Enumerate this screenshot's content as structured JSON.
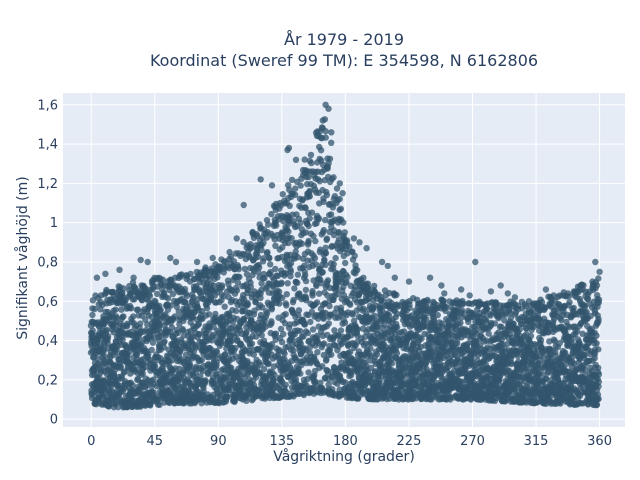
{
  "chart_data": {
    "type": "scatter",
    "title_lines": [
      "År 1979 - 2019",
      "Koordinat (Sweref 99 TM): E 354598, N 6162806"
    ],
    "xlabel": "Vågriktning (grader)",
    "ylabel": "Signifikant våghöjd (m)",
    "xlim": [
      -20,
      378
    ],
    "ylim": [
      -0.04,
      1.66
    ],
    "xticks": [
      0,
      45,
      90,
      135,
      180,
      225,
      270,
      315,
      360
    ],
    "xtick_labels": [
      "0",
      "45",
      "90",
      "135",
      "180",
      "225",
      "270",
      "315",
      "360"
    ],
    "yticks": [
      0,
      0.2,
      0.4,
      0.6,
      0.8,
      1.0,
      1.2,
      1.4,
      1.6
    ],
    "ytick_labels": [
      "0",
      "0,2",
      "0,4",
      "0,6",
      "0,8",
      "1",
      "1,2",
      "1,4",
      "1,6"
    ],
    "grid": true,
    "colors": {
      "plot_background": "#e5ecf6",
      "grid": "#ffffff",
      "marker": "#33566e"
    },
    "series": [
      {
        "marker_opacity": 0.75,
        "envelope_x": [
          0,
          15,
          30,
          45,
          60,
          75,
          90,
          105,
          120,
          135,
          150,
          160,
          165,
          170,
          180,
          195,
          225,
          270,
          315,
          360
        ],
        "envelope_ymax": [
          0.62,
          0.68,
          0.7,
          0.72,
          0.74,
          0.76,
          0.8,
          0.88,
          1.0,
          1.15,
          1.3,
          1.5,
          1.58,
          1.42,
          0.95,
          0.7,
          0.62,
          0.6,
          0.6,
          0.72
        ],
        "envelope_ymin": [
          0.08,
          0.06,
          0.06,
          0.07,
          0.08,
          0.08,
          0.08,
          0.09,
          0.1,
          0.11,
          0.12,
          0.13,
          0.13,
          0.12,
          0.11,
          0.1,
          0.1,
          0.1,
          0.08,
          0.07
        ],
        "points": [
          [
            166,
            1.6
          ],
          [
            168,
            1.58
          ],
          [
            164,
            1.52
          ],
          [
            170,
            1.46
          ],
          [
            161,
            1.44
          ],
          [
            140,
            1.38
          ],
          [
            139,
            1.37
          ],
          [
            145,
            1.32
          ],
          [
            120,
            1.22
          ],
          [
            128,
            1.19
          ],
          [
            176,
            1.2
          ],
          [
            178,
            1.15
          ],
          [
            108,
            1.09
          ],
          [
            186,
            0.92
          ],
          [
            190,
            0.9
          ],
          [
            195,
            0.87
          ],
          [
            103,
            0.92
          ],
          [
            98,
            0.85
          ],
          [
            272,
            0.8
          ],
          [
            357,
            0.8
          ],
          [
            360,
            0.75
          ],
          [
            355,
            0.7
          ],
          [
            35,
            0.81
          ],
          [
            40,
            0.8
          ],
          [
            56,
            0.82
          ],
          [
            60,
            0.8
          ],
          [
            75,
            0.8
          ],
          [
            86,
            0.82
          ],
          [
            4,
            0.72
          ],
          [
            10,
            0.74
          ],
          [
            20,
            0.76
          ],
          [
            30,
            0.72
          ],
          [
            225,
            0.7
          ],
          [
            240,
            0.72
          ],
          [
            248,
            0.68
          ],
          [
            262,
            0.66
          ],
          [
            268,
            0.63
          ],
          [
            283,
            0.65
          ],
          [
            290,
            0.68
          ],
          [
            300,
            0.62
          ],
          [
            322,
            0.66
          ],
          [
            334,
            0.63
          ],
          [
            342,
            0.64
          ],
          [
            348,
            0.66
          ],
          [
            250,
            0.64
          ],
          [
            206,
            0.8
          ],
          [
            210,
            0.78
          ],
          [
            215,
            0.72
          ],
          [
            295,
            0.64
          ],
          [
            310,
            0.6
          ]
        ]
      }
    ]
  }
}
